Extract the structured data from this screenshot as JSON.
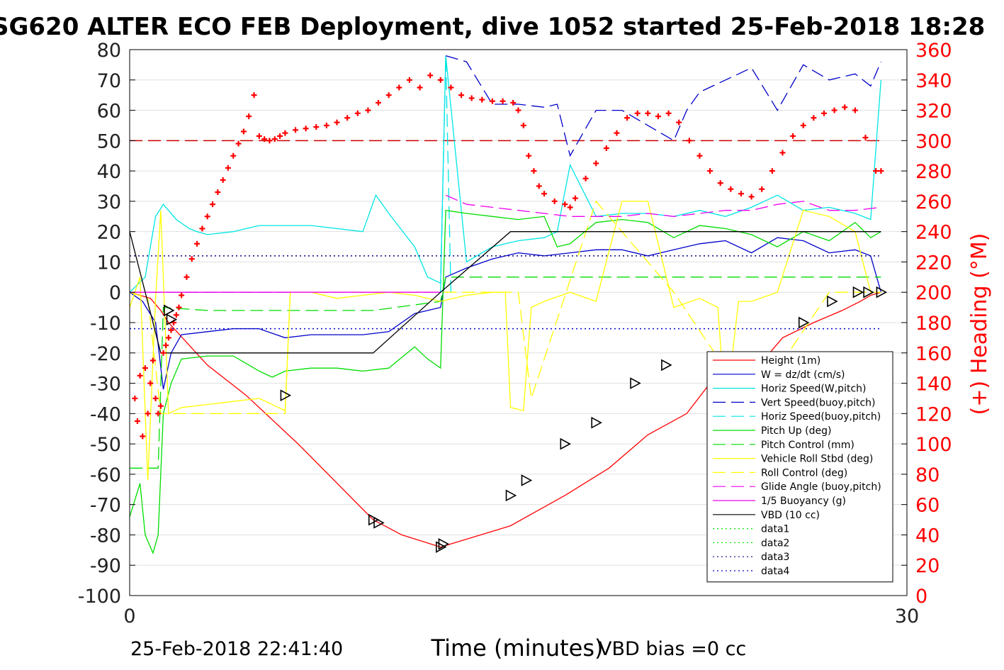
{
  "title": "SG620 ALTER ECO FEB Deployment, dive 1052 started 25-Feb-2018 18:28",
  "footer": {
    "left": "25-Feb-2018 22:41:40",
    "right": "VBD bias =0 cc"
  },
  "chart_data": {
    "type": "line",
    "xlabel": "Time (minutes)",
    "ylabel_right": "(+) Heading (°M)",
    "xlim": [
      0,
      30
    ],
    "ylim_left": [
      -100,
      80
    ],
    "ylim_right": [
      0,
      360
    ],
    "x_ticks": [
      "0",
      "30"
    ],
    "y_ticks_left": [
      "80",
      "70",
      "60",
      "50",
      "40",
      "30",
      "20",
      "10",
      "0",
      "-10",
      "-20",
      "-30",
      "-40",
      "-50",
      "-60",
      "-70",
      "-80",
      "-90",
      "-100"
    ],
    "y_ticks_right": [
      "360",
      "340",
      "320",
      "300",
      "280",
      "260",
      "240",
      "220",
      "200",
      "180",
      "160",
      "140",
      "120",
      "100",
      "80",
      "60",
      "40",
      "20",
      "0"
    ],
    "grid": "horizontal",
    "legend_position": "lower-right",
    "colors": {
      "heading": "#ff0000",
      "right_axis": "#ff0000"
    },
    "series": [
      {
        "name": "Height (1m)",
        "color": "#ff0000",
        "dash": "solid",
        "x": [
          0,
          0.8,
          1.2,
          1.5,
          3,
          4.5,
          6.5,
          9.4,
          10.5,
          12,
          14.7,
          16.8,
          18.5,
          20,
          21.5,
          22.4,
          24.3,
          25.2,
          26.4,
          27.5,
          28.2,
          28.6,
          29.0
        ],
        "y": [
          0,
          -2,
          -6,
          -10,
          -24,
          -34,
          -50,
          -75,
          -80,
          -84,
          -77,
          -67,
          -58,
          -47,
          -40,
          -30,
          -24,
          -15,
          -10,
          -6,
          -3,
          -1,
          0
        ]
      },
      {
        "name": "W = dz/dt (cm/s)",
        "color": "#0000cc",
        "dash": "solid",
        "x": [
          0,
          0.5,
          1.0,
          1.3,
          1.6,
          2,
          3,
          4,
          5,
          6,
          7,
          8,
          9,
          10,
          11,
          12,
          12.2,
          13,
          14,
          15,
          16,
          17,
          18,
          19,
          20,
          21,
          22,
          23,
          24,
          25,
          26,
          27,
          28,
          28.6,
          29.0
        ],
        "y": [
          0,
          -3,
          -10,
          -32,
          -20,
          -14,
          -13,
          -12,
          -12,
          -15,
          -14,
          -14,
          -14,
          -13,
          -7,
          -5,
          5,
          8,
          11,
          13,
          12,
          13,
          14,
          14,
          12,
          14,
          16,
          17,
          13,
          18,
          17,
          13,
          14,
          12,
          0
        ]
      },
      {
        "name": "Horiz Speed(W,pitch)",
        "color": "#00e5e5",
        "dash": "solid",
        "x": [
          0,
          0.6,
          1.0,
          1.3,
          1.8,
          2.3,
          2.6,
          3,
          4,
          5,
          6,
          7,
          8,
          9,
          9.5,
          10,
          11,
          11.5,
          12,
          12.2,
          13,
          14,
          15,
          16,
          16.5,
          17,
          18,
          19,
          20,
          21,
          22,
          23,
          24,
          25,
          26,
          27,
          28,
          28.6,
          29.0
        ],
        "y": [
          0,
          5,
          25,
          29,
          24,
          21,
          20,
          19,
          20,
          22,
          22,
          22,
          21,
          20,
          32,
          26,
          15,
          5,
          3,
          78,
          10,
          15,
          17,
          18,
          20,
          42,
          25,
          26,
          26,
          25,
          27,
          25,
          28,
          32,
          27,
          28,
          26,
          24,
          70
        ]
      },
      {
        "name": "Vert Speed(buoy,pitch)",
        "color": "#0000cc",
        "dash": "dashed",
        "x": [
          12.2,
          13,
          14,
          15,
          16,
          16.5,
          17,
          18,
          19,
          20,
          21,
          21.5,
          22,
          23,
          24,
          25,
          26,
          27,
          28,
          28.6,
          29.0
        ],
        "y": [
          78,
          76,
          62,
          62,
          61,
          62,
          45,
          60,
          60,
          55,
          50,
          60,
          66,
          70,
          74,
          60,
          75,
          70,
          72,
          68,
          76
        ]
      },
      {
        "name": "Horiz Speed(buoy,pitch)",
        "color": "#00e5e5",
        "dash": "dashed",
        "x": [
          12.0,
          12.2,
          12.4
        ],
        "y": [
          0,
          78,
          0
        ]
      },
      {
        "name": "Pitch Up (deg)",
        "color": "#00dd00",
        "dash": "solid",
        "x": [
          0,
          0.4,
          0.6,
          0.9,
          1.1,
          1.3,
          1.6,
          2,
          3,
          4,
          5,
          5.5,
          6,
          7,
          8,
          9,
          10,
          11,
          11.5,
          12,
          12.2,
          13,
          14,
          15,
          16,
          16.5,
          17,
          18,
          19,
          20,
          21,
          22,
          23,
          24,
          25,
          26,
          27,
          28,
          28.6,
          29.0
        ],
        "y": [
          -74,
          -63,
          -80,
          -86,
          -80,
          -40,
          -30,
          -22,
          -21,
          -21,
          -26,
          -28,
          -26,
          -25,
          -25,
          -26,
          -25,
          -18,
          -22,
          -25,
          27,
          26,
          25,
          24,
          25,
          15,
          16,
          23,
          24,
          23,
          18,
          22,
          21,
          19,
          15,
          20,
          17,
          23,
          18,
          20
        ]
      },
      {
        "name": "Pitch Control (mm)",
        "color": "#00dd00",
        "dash": "dashed",
        "x": [
          0,
          1.1,
          1.3,
          3,
          6,
          9.4,
          12.0,
          12.2,
          15,
          18,
          21,
          24,
          27,
          29.0
        ],
        "y": [
          -58,
          -58,
          -5,
          -6,
          -6,
          -6,
          -3,
          5,
          5,
          5,
          5,
          5,
          5,
          5
        ]
      },
      {
        "name": "Vehicle Roll Stbd (deg)",
        "color": "#ffff00",
        "dash": "solid",
        "x": [
          0,
          0.4,
          0.7,
          1.0,
          1.2,
          1.5,
          2,
          3,
          4,
          5,
          6,
          6.2,
          7,
          8,
          9,
          10,
          11,
          12,
          13,
          14,
          14.5,
          14.7,
          15.2,
          15.5,
          16,
          17,
          18,
          19,
          20,
          21,
          22,
          22.7,
          23,
          23.5,
          24,
          25,
          26,
          27,
          28,
          28.6,
          29.0
        ],
        "y": [
          -5,
          5,
          -62,
          -2,
          27,
          -40,
          -38,
          -37,
          -36,
          -35,
          -39,
          0,
          0,
          -2,
          -1,
          0,
          -1,
          -3,
          -1,
          0,
          0,
          -38,
          -39,
          -5,
          -3,
          0,
          -3,
          30,
          30,
          -5,
          -2,
          -5,
          -40,
          -3,
          -3,
          0,
          27,
          25,
          20,
          0,
          0
        ]
      },
      {
        "name": "Roll Control (deg)",
        "color": "#ffff00",
        "dash": "dashed",
        "x": [
          0,
          0.7,
          1.2,
          3,
          6,
          6.2,
          9.4,
          12.2,
          15,
          15.5,
          18,
          21,
          24,
          27,
          29.0
        ],
        "y": [
          0,
          -2,
          -40,
          -40,
          -40,
          0,
          0,
          0,
          0,
          -35,
          30,
          0,
          -38,
          0,
          0
        ]
      },
      {
        "name": "Glide Angle (buoy,pitch)",
        "color": "#ee00ee",
        "dash": "dashed",
        "x": [
          12.2,
          13,
          14,
          15,
          16,
          17,
          18,
          19,
          20,
          21,
          22,
          23,
          24,
          25,
          26,
          27,
          28,
          29.0
        ],
        "y": [
          32,
          29,
          28,
          27,
          26,
          25,
          25,
          25,
          26,
          25,
          26,
          27,
          27,
          29,
          30,
          27,
          27,
          28
        ]
      },
      {
        "name": "1/5 Buoyancy (g)",
        "color": "#ee00ee",
        "dash": "solid",
        "x": [
          0,
          12.0
        ],
        "y": [
          0,
          0
        ]
      },
      {
        "name": "VBD (10 cc)",
        "color": "#000000",
        "dash": "solid",
        "x": [
          0,
          1.2,
          9.4,
          12.0,
          14.7,
          29.0
        ],
        "y": [
          20,
          -20,
          -20,
          0,
          20,
          20
        ]
      },
      {
        "name": "data1",
        "color": "#00ee00",
        "dash": "dotted",
        "x": [],
        "y": []
      },
      {
        "name": "data2",
        "color": "#00ee00",
        "dash": "dotted",
        "x": [],
        "y": []
      },
      {
        "name": "data3",
        "color": "#000080",
        "dash": "dotted",
        "x": [
          0,
          29.0
        ],
        "y": [
          12,
          12
        ]
      },
      {
        "name": "data4",
        "color": "#0000cc",
        "dash": "dotted",
        "x": [
          0,
          29.0
        ],
        "y": [
          -12,
          -12
        ]
      }
    ],
    "reference_lines": [
      {
        "axis": "left",
        "y": 50,
        "color": "#cc0000",
        "dash": "dashed",
        "x": [
          0,
          29.0
        ]
      },
      {
        "axis": "left",
        "y": 0,
        "color": "#8a2be2",
        "dash": "dashed",
        "x": [
          0,
          12.0
        ]
      }
    ],
    "heading": {
      "axis": "right",
      "color": "#ff0000",
      "marker": "+",
      "x": [
        0.2,
        0.3,
        0.4,
        0.5,
        0.6,
        0.7,
        0.8,
        0.9,
        1.0,
        1.1,
        1.2,
        1.3,
        1.4,
        1.5,
        1.6,
        1.7,
        1.8,
        1.9,
        2.0,
        2.2,
        2.4,
        2.6,
        2.8,
        3.0,
        3.2,
        3.4,
        3.6,
        3.8,
        4.0,
        4.2,
        4.4,
        4.6,
        4.8,
        5.0,
        5.2,
        5.4,
        5.6,
        5.8,
        6.0,
        6.4,
        6.8,
        7.2,
        7.6,
        8.0,
        8.4,
        8.8,
        9.2,
        9.6,
        10.0,
        10.4,
        10.8,
        11.2,
        11.6,
        12.0,
        12.4,
        12.8,
        13.2,
        13.6,
        14.0,
        14.4,
        14.8,
        15.0,
        15.2,
        15.4,
        15.6,
        15.8,
        16.0,
        16.4,
        16.8,
        17.0,
        17.2,
        17.6,
        18.0,
        18.4,
        18.8,
        19.2,
        19.6,
        20.0,
        20.4,
        20.8,
        21.2,
        21.6,
        22.0,
        22.4,
        22.8,
        23.2,
        23.6,
        24.0,
        24.4,
        24.8,
        25.2,
        25.6,
        26.0,
        26.4,
        26.8,
        27.2,
        27.6,
        28.0,
        28.4,
        28.8,
        29.0
      ],
      "y": [
        130,
        115,
        145,
        105,
        150,
        120,
        140,
        155,
        130,
        120,
        125,
        160,
        165,
        170,
        175,
        180,
        185,
        190,
        198,
        210,
        222,
        232,
        242,
        250,
        258,
        266,
        274,
        282,
        290,
        298,
        306,
        316,
        330,
        303,
        301,
        300,
        301,
        303,
        305,
        307,
        308,
        309,
        310,
        312,
        315,
        318,
        320,
        325,
        330,
        335,
        340,
        335,
        343,
        340,
        335,
        330,
        328,
        327,
        326,
        326,
        325,
        320,
        310,
        290,
        280,
        270,
        265,
        260,
        258,
        256,
        262,
        275,
        285,
        295,
        305,
        315,
        318,
        318,
        316,
        318,
        312,
        300,
        290,
        280,
        272,
        268,
        265,
        263,
        268,
        280,
        292,
        303,
        310,
        315,
        318,
        320,
        322,
        320,
        302,
        280,
        280
      ]
    },
    "markers": {
      "symbol": "triangle-right",
      "x": [
        1.5,
        1.6,
        6.0,
        9.4,
        9.6,
        12.0,
        12.1,
        14.7,
        15.3,
        16.8,
        18.0,
        19.5,
        20.7,
        26.0,
        27.1,
        28.1,
        28.5,
        29.0
      ],
      "y": [
        -6,
        -9,
        -34,
        -75,
        -76,
        -84,
        -83,
        -67,
        -62,
        -50,
        -43,
        -30,
        -24,
        -10,
        -3,
        0,
        0,
        0
      ]
    }
  }
}
